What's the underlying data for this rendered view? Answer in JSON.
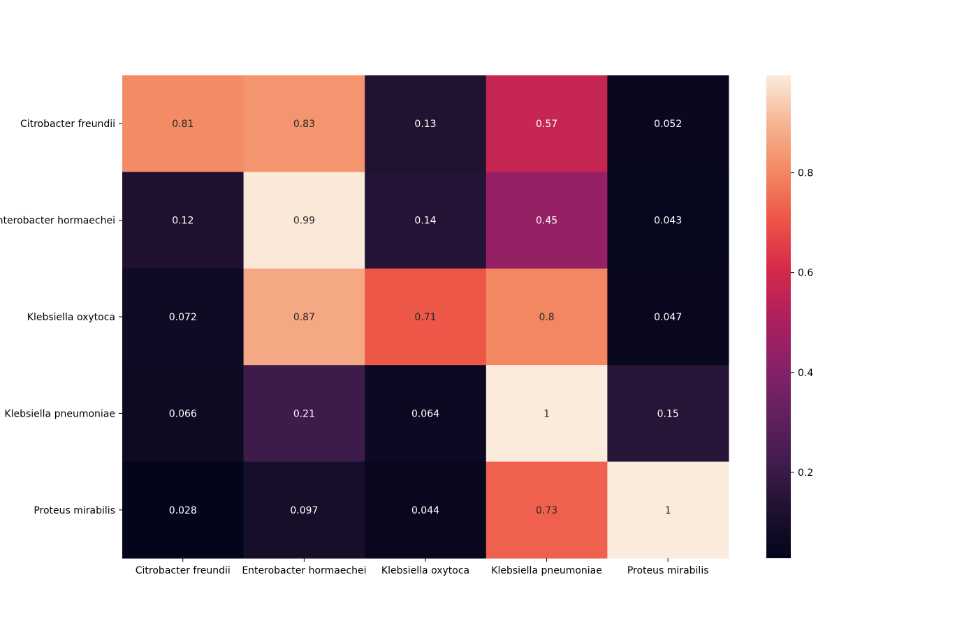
{
  "chart_data": {
    "type": "heatmap",
    "title": "",
    "xlabel": "",
    "ylabel": "",
    "x_categories": [
      "Citrobacter freundii",
      "Enterobacter hormaechei",
      "Klebsiella oxytoca",
      "Klebsiella pneumoniae",
      "Proteus mirabilis"
    ],
    "y_categories": [
      "Citrobacter freundii",
      "Enterobacter hormaechei",
      "Klebsiella oxytoca",
      "Klebsiella pneumoniae",
      "Proteus mirabilis"
    ],
    "values": [
      [
        0.81,
        0.83,
        0.13,
        0.57,
        0.052
      ],
      [
        0.12,
        0.99,
        0.14,
        0.45,
        0.043
      ],
      [
        0.072,
        0.87,
        0.71,
        0.8,
        0.047
      ],
      [
        0.066,
        0.21,
        0.064,
        1,
        0.15
      ],
      [
        0.028,
        0.097,
        0.044,
        0.73,
        1
      ]
    ],
    "annotations": [
      [
        "0.81",
        "0.83",
        "0.13",
        "0.57",
        "0.052"
      ],
      [
        "0.12",
        "0.99",
        "0.14",
        "0.45",
        "0.043"
      ],
      [
        "0.072",
        "0.87",
        "0.71",
        "0.8",
        "0.047"
      ],
      [
        "0.066",
        "0.21",
        "0.064",
        "1",
        "0.15"
      ],
      [
        "0.028",
        "0.097",
        "0.044",
        "0.73",
        "1"
      ]
    ],
    "colorbar": {
      "colormap": "rocket",
      "range": [
        0.028,
        0.995
      ],
      "ticks": [
        0.2,
        0.4,
        0.6,
        0.8
      ],
      "tick_labels": [
        "0.2",
        "0.4",
        "0.6",
        "0.8"
      ]
    },
    "grid": false,
    "legend": "colorbar-right"
  }
}
